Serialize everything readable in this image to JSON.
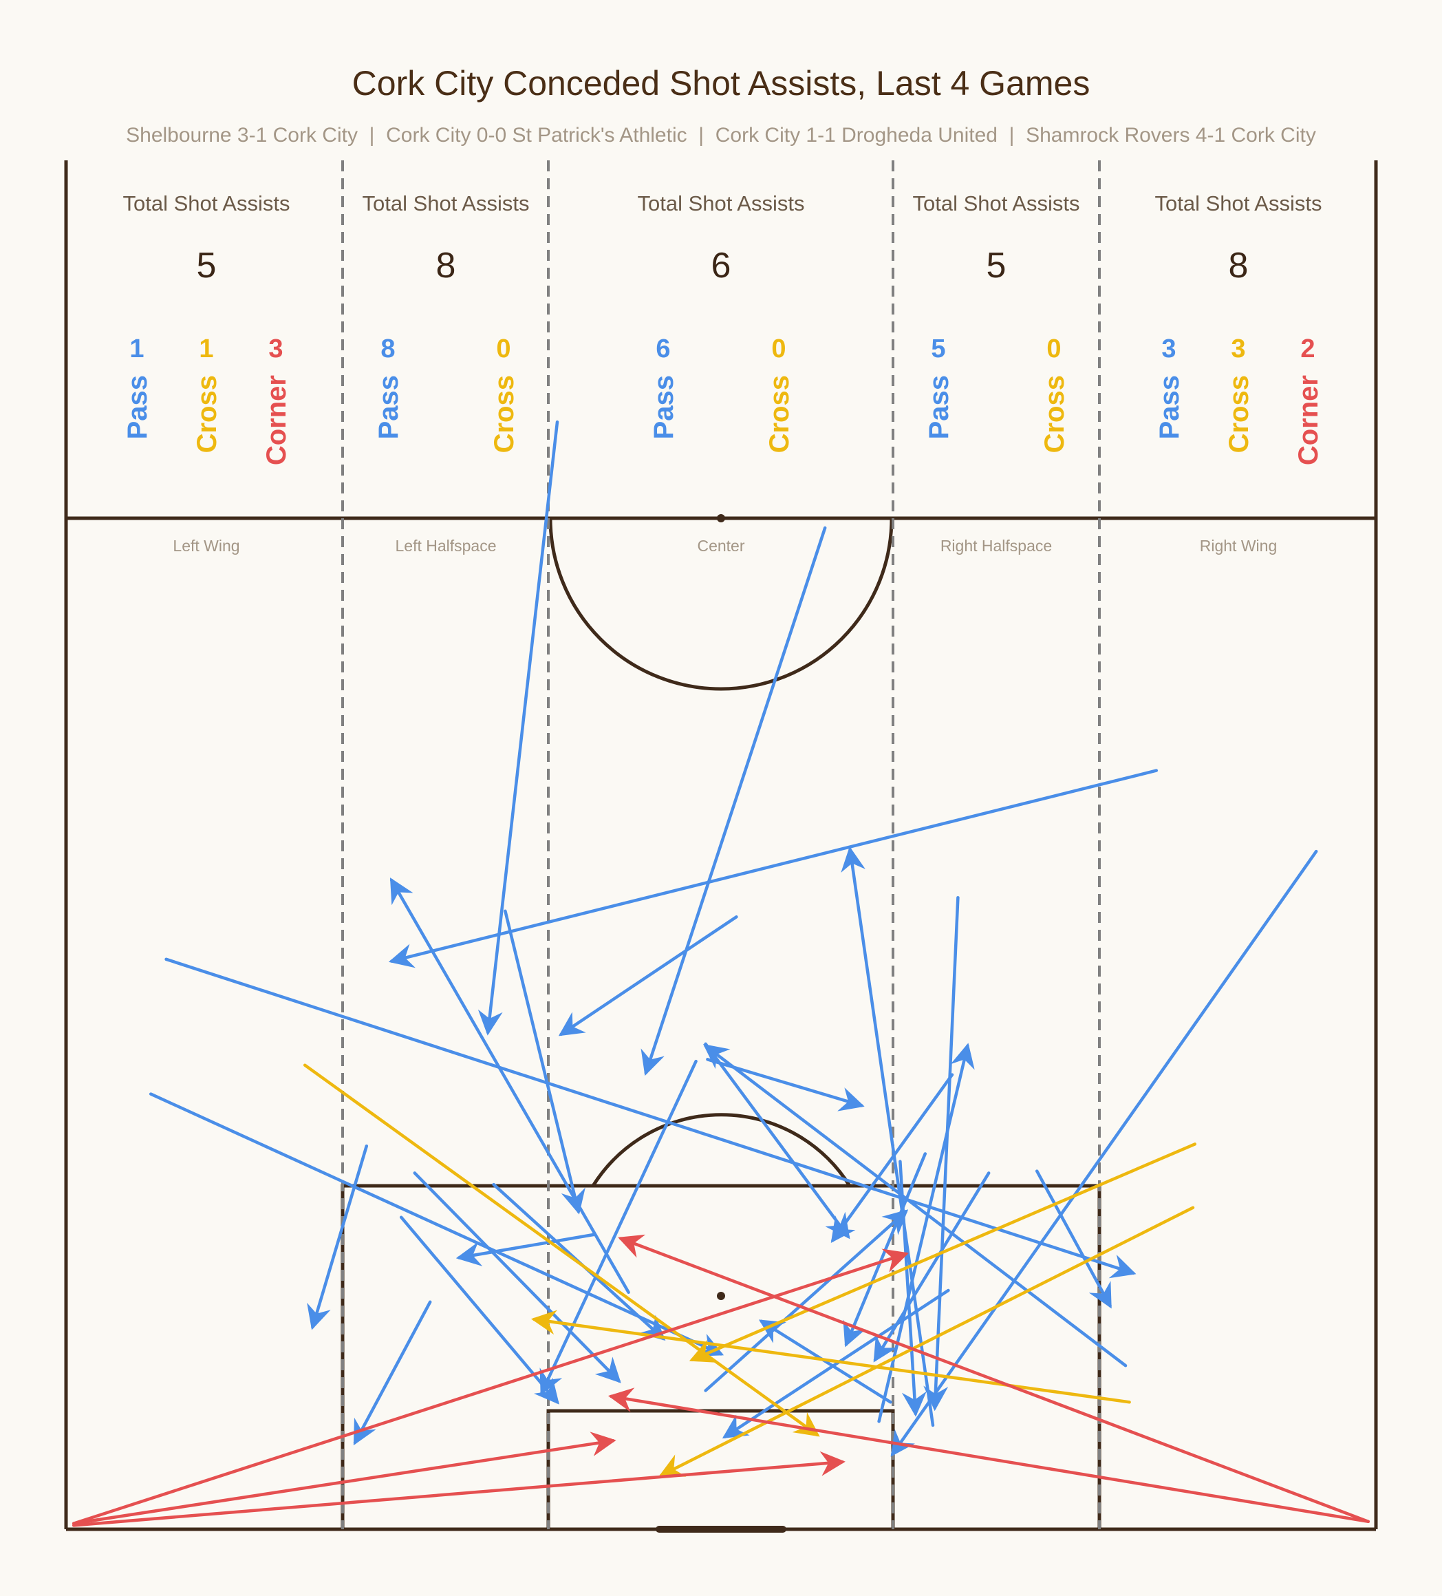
{
  "title": "Cork City Conceded Shot Assists, Last 4 Games",
  "subtitle": "Shelbourne 3-1 Cork City  |  Cork City 0-0 St Patrick's Athletic  |  Cork City 1-1 Drogheda United  |  Shamrock Rovers 4-1 Cork City",
  "colors": {
    "background": "#fbf9f4",
    "pitch_lines": "#3f2a1a",
    "zone_divider": "#808080",
    "Pass": "#4a8ee8",
    "Cross": "#eeb80f",
    "Corner": "#e55050"
  },
  "chart_data": {
    "type": "pitch-arrows",
    "orientation": "vertical half pitch, goal at bottom",
    "zones": [
      {
        "name": "Left Wing",
        "total_label": "Total Shot Assists",
        "total": 5,
        "breakdown": [
          {
            "type": "Pass",
            "count": 1
          },
          {
            "type": "Cross",
            "count": 1
          },
          {
            "type": "Corner",
            "count": 3
          }
        ]
      },
      {
        "name": "Left Halfspace",
        "total_label": "Total Shot Assists",
        "total": 8,
        "breakdown": [
          {
            "type": "Pass",
            "count": 8
          },
          {
            "type": "Cross",
            "count": 0
          }
        ]
      },
      {
        "name": "Center",
        "total_label": "Total Shot Assists",
        "total": 6,
        "breakdown": [
          {
            "type": "Pass",
            "count": 6
          },
          {
            "type": "Cross",
            "count": 0
          }
        ]
      },
      {
        "name": "Right Halfspace",
        "total_label": "Total Shot Assists",
        "total": 5,
        "breakdown": [
          {
            "type": "Pass",
            "count": 5
          },
          {
            "type": "Cross",
            "count": 0
          }
        ]
      },
      {
        "name": "Right Wing",
        "total_label": "Total Shot Assists",
        "total": 8,
        "breakdown": [
          {
            "type": "Pass",
            "count": 3
          },
          {
            "type": "Cross",
            "count": 3
          },
          {
            "type": "Corner",
            "count": 2
          }
        ]
      }
    ],
    "pitch_extent": {
      "x": [
        0,
        68
      ],
      "y": [
        0,
        52.5
      ]
    },
    "assists": [
      {
        "type": "Pass",
        "start": [
          39.4,
          52.0
        ],
        "end": [
          30.1,
          23.7
        ]
      },
      {
        "type": "Pass",
        "start": [
          25.5,
          57.5
        ],
        "end": [
          21.9,
          25.8
        ]
      },
      {
        "type": "Pass",
        "start": [
          56.6,
          39.4
        ],
        "end": [
          16.9,
          29.5
        ]
      },
      {
        "type": "Pass",
        "start": [
          64.9,
          35.2
        ],
        "end": [
          42.9,
          3.9
        ]
      },
      {
        "type": "Pass",
        "start": [
          46.3,
          32.8
        ],
        "end": [
          45.1,
          6.3
        ]
      },
      {
        "type": "Pass",
        "start": [
          47.9,
          18.5
        ],
        "end": [
          42.0,
          8.8
        ]
      },
      {
        "type": "Pass",
        "start": [
          44.6,
          19.5
        ],
        "end": [
          40.5,
          9.6
        ]
      },
      {
        "type": "Pass",
        "start": [
          27.4,
          15.3
        ],
        "end": [
          20.4,
          14.1
        ]
      },
      {
        "type": "Pass",
        "start": [
          22.2,
          17.9
        ],
        "end": [
          31.0,
          9.9
        ]
      },
      {
        "type": "Pass",
        "start": [
          15.6,
          19.9
        ],
        "end": [
          12.8,
          10.5
        ]
      },
      {
        "type": "Pass",
        "start": [
          18.1,
          18.5
        ],
        "end": [
          28.7,
          7.7
        ]
      },
      {
        "type": "Pass",
        "start": [
          17.4,
          16.2
        ],
        "end": [
          25.5,
          6.6
        ]
      },
      {
        "type": "Pass",
        "start": [
          29.2,
          12.3
        ],
        "end": [
          16.9,
          33.7
        ]
      },
      {
        "type": "Pass",
        "start": [
          22.8,
          32.1
        ],
        "end": [
          26.6,
          16.5
        ]
      },
      {
        "type": "Pass",
        "start": [
          32.7,
          24.3
        ],
        "end": [
          24.7,
          7.1
        ]
      },
      {
        "type": "Pass",
        "start": [
          4.4,
          22.6
        ],
        "end": [
          34.0,
          9.1
        ]
      },
      {
        "type": "Pass",
        "start": [
          34.8,
          31.8
        ],
        "end": [
          25.7,
          25.7
        ]
      },
      {
        "type": "Pass",
        "start": [
          33.2,
          25.2
        ],
        "end": [
          40.6,
          15.2
        ]
      },
      {
        "type": "Pass",
        "start": [
          46.0,
          23.6
        ],
        "end": [
          39.8,
          15.0
        ]
      },
      {
        "type": "Pass",
        "start": [
          33.3,
          24.4
        ],
        "end": [
          41.3,
          22.0
        ]
      },
      {
        "type": "Pass",
        "start": [
          55.0,
          8.5
        ],
        "end": [
          33.2,
          25.1
        ]
      },
      {
        "type": "Pass",
        "start": [
          45.0,
          5.4
        ],
        "end": [
          40.7,
          35.3
        ]
      },
      {
        "type": "Pass",
        "start": [
          18.9,
          11.8
        ],
        "end": [
          15.0,
          4.5
        ]
      },
      {
        "type": "Pass",
        "start": [
          43.3,
          19.1
        ],
        "end": [
          44.1,
          6.0
        ]
      },
      {
        "type": "Pass",
        "start": [
          50.4,
          18.6
        ],
        "end": [
          54.2,
          11.6
        ]
      },
      {
        "type": "Pass",
        "start": [
          45.8,
          12.4
        ],
        "end": [
          34.2,
          4.8
        ]
      },
      {
        "type": "Pass",
        "start": [
          5.2,
          29.6
        ],
        "end": [
          55.4,
          13.3
        ]
      },
      {
        "type": "Pass",
        "start": [
          42.8,
          6.6
        ],
        "end": [
          36.1,
          10.8
        ]
      },
      {
        "type": "Pass",
        "start": [
          33.2,
          7.2
        ],
        "end": [
          43.6,
          16.5
        ]
      },
      {
        "type": "Pass",
        "start": [
          42.2,
          5.6
        ],
        "end": [
          46.8,
          25.1
        ]
      },
      {
        "type": "Cross",
        "start": [
          12.4,
          24.1
        ],
        "end": [
          39.0,
          4.9
        ]
      },
      {
        "type": "Cross",
        "start": [
          58.6,
          20.0
        ],
        "end": [
          32.5,
          8.8
        ]
      },
      {
        "type": "Cross",
        "start": [
          55.2,
          6.6
        ],
        "end": [
          24.3,
          10.9
        ]
      },
      {
        "type": "Cross",
        "start": [
          58.5,
          16.7
        ],
        "end": [
          30.9,
          2.8
        ]
      },
      {
        "type": "Corner",
        "start": [
          0.4,
          0.3
        ],
        "end": [
          28.4,
          4.6
        ]
      },
      {
        "type": "Corner",
        "start": [
          0.4,
          0.2
        ],
        "end": [
          40.3,
          3.5
        ]
      },
      {
        "type": "Corner",
        "start": [
          0.4,
          0.3
        ],
        "end": [
          43.6,
          14.3
        ]
      },
      {
        "type": "Corner",
        "start": [
          67.6,
          0.4
        ],
        "end": [
          28.8,
          15.1
        ]
      },
      {
        "type": "Corner",
        "start": [
          67.6,
          0.4
        ],
        "end": [
          28.3,
          6.9
        ]
      }
    ]
  }
}
